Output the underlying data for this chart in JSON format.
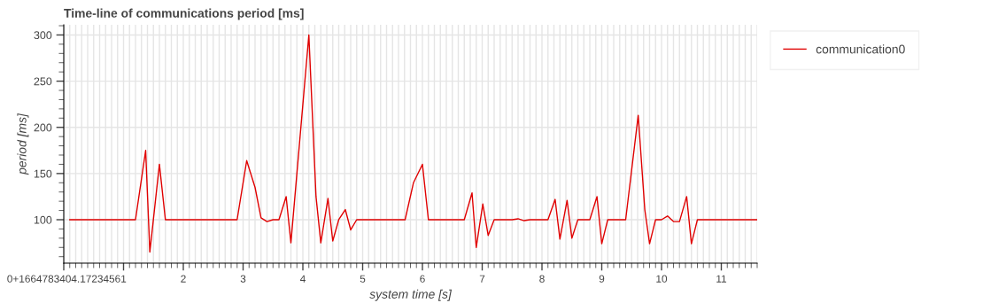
{
  "chart_data": {
    "type": "line",
    "title": "Time-line of communications period [ms]",
    "xlabel": "system time [s]",
    "ylabel": "period [ms]",
    "series": [
      {
        "name": "communication0",
        "color": "#e00000",
        "x": [
          0.1,
          1.2,
          1.37,
          1.44,
          1.6,
          1.7,
          2.9,
          3.06,
          3.2,
          3.3,
          3.4,
          3.5,
          3.6,
          3.72,
          3.8,
          4.1,
          4.22,
          4.3,
          4.42,
          4.5,
          4.6,
          4.71,
          4.8,
          4.9,
          5.71,
          5.85,
          6.0,
          6.1,
          6.7,
          6.83,
          6.9,
          7.01,
          7.1,
          7.2,
          7.5,
          7.6,
          7.7,
          7.8,
          8.1,
          8.22,
          8.3,
          8.42,
          8.5,
          8.6,
          8.8,
          8.92,
          9.0,
          9.1,
          9.4,
          9.61,
          9.72,
          9.8,
          9.9,
          10.0,
          10.1,
          10.2,
          10.3,
          10.42,
          10.5,
          10.6,
          11.59
        ],
        "values": [
          100,
          100,
          175,
          65,
          160,
          100,
          100,
          164,
          135,
          102,
          98,
          100,
          100,
          125,
          75,
          300,
          125,
          75,
          123,
          77,
          100,
          111,
          89,
          100,
          100,
          140,
          160,
          100,
          100,
          129,
          70,
          117,
          83,
          100,
          100,
          101,
          99,
          100,
          100,
          122,
          79,
          121,
          80,
          100,
          100,
          125,
          74,
          100,
          100,
          213,
          111,
          74,
          100,
          100,
          104,
          98,
          98,
          125,
          74,
          100,
          100
        ]
      }
    ],
    "xlim": [
      0,
      11.6
    ],
    "xticks": [
      {
        "value": 0,
        "label": "0+1664783404.1723456"
      },
      1,
      2,
      3,
      4,
      5,
      6,
      7,
      8,
      9,
      10,
      11
    ],
    "ylim": [
      53,
      311
    ],
    "yticks": [
      100,
      150,
      200,
      250,
      300
    ],
    "grid": true,
    "legend": "top right",
    "line_style": "solid",
    "marker": "none"
  }
}
